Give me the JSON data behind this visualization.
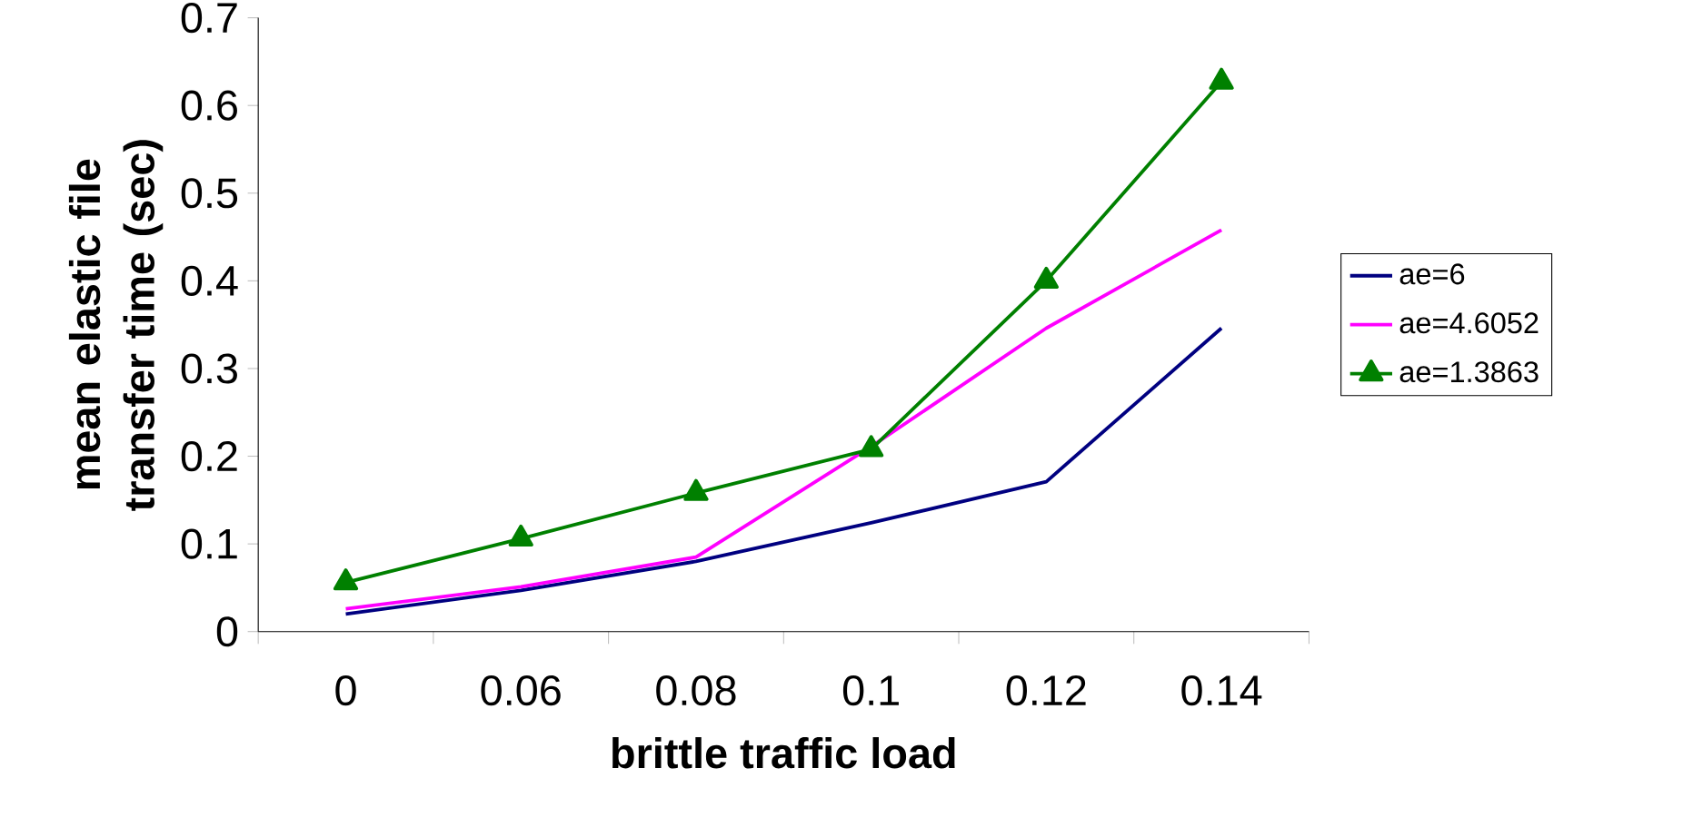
{
  "chart_data": {
    "type": "line",
    "xlabel": "brittle traffic load",
    "ylabel": "mean elastic file transfer time (sec)",
    "categories": [
      "0",
      "0.06",
      "0.08",
      "0.1",
      "0.12",
      "0.14"
    ],
    "series": [
      {
        "name": "ae=6",
        "color": "#000080",
        "marker": "none",
        "values": [
          0.02,
          0.047,
          0.08,
          0.124,
          0.171,
          0.346
        ]
      },
      {
        "name": "ae=4.6052",
        "color": "#ff00ff",
        "marker": "none",
        "values": [
          0.026,
          0.051,
          0.085,
          0.211,
          0.346,
          0.458
        ]
      },
      {
        "name": "ae=1.3863",
        "color": "#008000",
        "marker": "triangle",
        "values": [
          0.056,
          0.106,
          0.158,
          0.208,
          0.4,
          0.627
        ]
      }
    ],
    "ylim": [
      0,
      0.7
    ],
    "yticks": [
      0,
      0.1,
      0.2,
      0.3,
      0.4,
      0.5,
      0.6,
      0.7
    ],
    "legend": "right",
    "grid": false
  }
}
